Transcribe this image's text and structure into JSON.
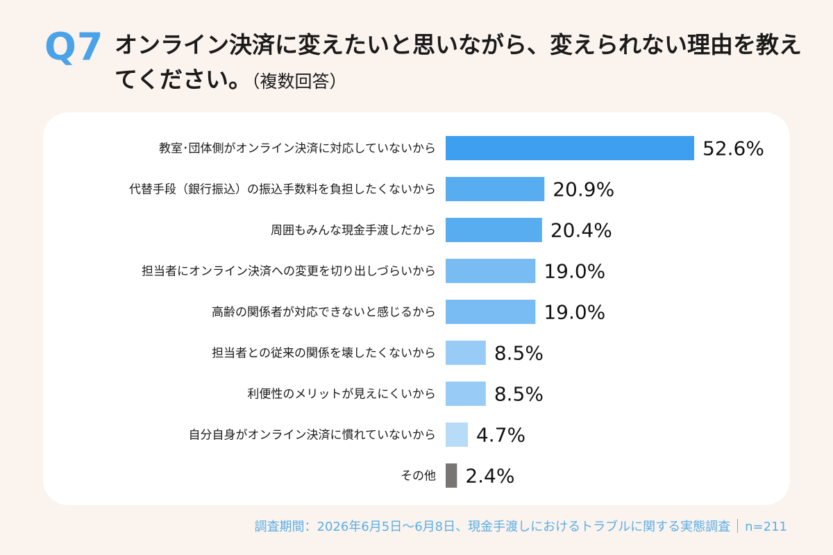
{
  "header": {
    "question_number": "Q7",
    "title": "オンライン決済に変えたいと思いながら、変えられない理由を教えてください。",
    "title_note": "（複数回答）"
  },
  "footer": {
    "survey": "調査期間：2026年6月5日～6月8日、現金手渡しにおけるトラブルに関する実態調査",
    "n": "n=211"
  },
  "chart_data": {
    "type": "bar",
    "orientation": "horizontal",
    "categories": [
      "教室･団体側がオンライン決済に対応していないから",
      "代替手段（銀行振込）の振込手数料を負担したくないから",
      "周囲もみんな現金手渡しだから",
      "担当者にオンライン決済への変更を切り出しづらいから",
      "高齢の関係者が対応できないと感じるから",
      "担当者との従来の関係を壊したくないから",
      "利便性のメリットが見えにくいから",
      "自分自身がオンライン決済に慣れていないから",
      "その他"
    ],
    "values": [
      52.6,
      20.9,
      20.4,
      19.0,
      19.0,
      8.5,
      8.5,
      4.7,
      2.4
    ],
    "value_labels": [
      "52.6%",
      "20.9%",
      "20.4%",
      "19.0%",
      "19.0%",
      "8.5%",
      "8.5%",
      "4.7%",
      "2.4%"
    ],
    "colors": [
      "#3e9ff0",
      "#58adf1",
      "#58adf1",
      "#78bcf3",
      "#78bcf3",
      "#98ccf6",
      "#98ccf6",
      "#b8dbf8",
      "#7a7575"
    ],
    "xlim": [
      0,
      52.6
    ],
    "grid": false,
    "legend": "none"
  }
}
